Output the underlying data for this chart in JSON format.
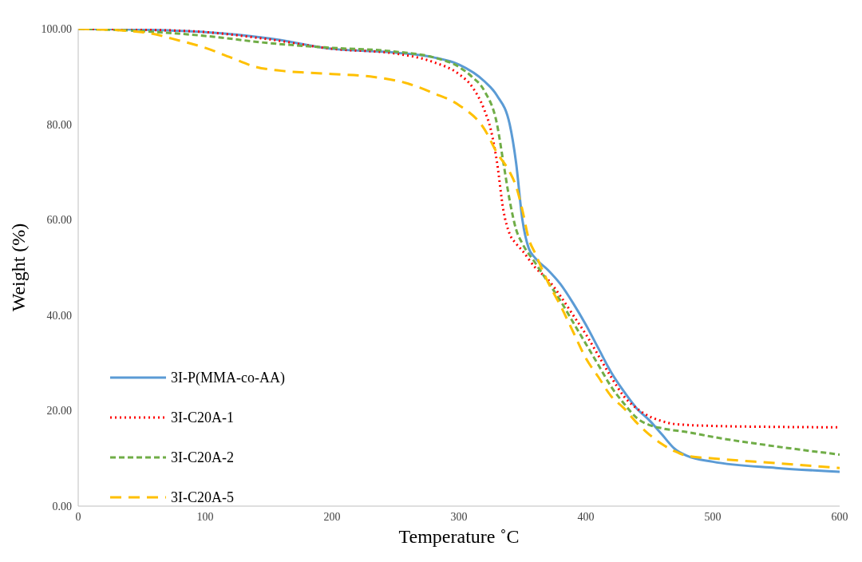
{
  "chart_data": {
    "type": "line",
    "xlabel": "Temperature ˚C",
    "ylabel": "Weight (%)",
    "xlim": [
      0,
      600
    ],
    "xticks": [
      0,
      100,
      200,
      300,
      400,
      500,
      600
    ],
    "ylim": [
      0,
      100
    ],
    "yticks": [
      {
        "value": 0,
        "label": "0.00"
      },
      {
        "value": 20,
        "label": "20.00"
      },
      {
        "value": 40,
        "label": "40.00"
      },
      {
        "value": 60,
        "label": "60.00"
      },
      {
        "value": 80,
        "label": "80.00"
      },
      {
        "value": 100,
        "label": "100.00"
      }
    ],
    "grid": false,
    "legend": "bottom left",
    "marker": "none",
    "series": [
      {
        "name": "3I-P(MMA-co-AA)",
        "color": "#5b9bd5",
        "line_style": "solid",
        "x": [
          0,
          50,
          100,
          150,
          200,
          250,
          280,
          300,
          320,
          330,
          340,
          345,
          350,
          355,
          360,
          370,
          380,
          390,
          400,
          410,
          420,
          430,
          440,
          450,
          460,
          470,
          480,
          500,
          550,
          600
        ],
        "values": [
          100,
          99.8,
          99.3,
          98,
          95.8,
          95,
          94,
          92.5,
          89,
          86,
          80,
          72,
          60,
          54,
          52,
          49.5,
          46.5,
          42.5,
          38,
          33,
          28,
          24,
          20.5,
          18,
          15,
          12,
          10.5,
          9.3,
          8,
          7.2
        ]
      },
      {
        "name": "3I-C20A-1",
        "color": "#ff0000",
        "line_style": "dotted",
        "x": [
          0,
          50,
          100,
          150,
          200,
          250,
          280,
          300,
          310,
          320,
          325,
          330,
          335,
          340,
          345,
          350,
          360,
          370,
          380,
          390,
          400,
          410,
          420,
          430,
          440,
          450,
          460,
          470,
          500,
          550,
          600
        ],
        "values": [
          100,
          99.8,
          99.3,
          97.8,
          95.8,
          94.8,
          93,
          90.5,
          88,
          83,
          79,
          72,
          62,
          57,
          55,
          53.5,
          50,
          47.5,
          44,
          40,
          36,
          31.5,
          27,
          23,
          20.5,
          18.8,
          17.8,
          17.2,
          16.8,
          16.6,
          16.5
        ]
      },
      {
        "name": "3I-C20A-2",
        "color": "#70ad47",
        "line_style": "dashed",
        "x": [
          0,
          50,
          100,
          150,
          200,
          250,
          280,
          300,
          310,
          320,
          330,
          335,
          340,
          345,
          350,
          360,
          370,
          380,
          390,
          400,
          410,
          420,
          430,
          440,
          450,
          460,
          480,
          500,
          550,
          600
        ],
        "values": [
          100,
          99.5,
          98.5,
          97,
          96,
          95.2,
          94,
          92,
          90,
          87,
          80,
          72,
          64,
          58,
          55,
          51,
          47,
          43,
          38.5,
          34,
          29.5,
          25,
          21.5,
          18.5,
          17,
          16.3,
          15.5,
          14.5,
          12.5,
          10.8
        ]
      },
      {
        "name": "3I-C20A-5",
        "color": "#ffc000",
        "line_style": "dashed",
        "x": [
          0,
          50,
          80,
          100,
          120,
          140,
          160,
          180,
          200,
          230,
          260,
          280,
          300,
          320,
          330,
          340,
          345,
          350,
          355,
          360,
          370,
          380,
          390,
          400,
          410,
          420,
          430,
          440,
          450,
          460,
          470,
          480,
          500,
          550,
          600
        ],
        "values": [
          100,
          99.3,
          97.5,
          96,
          94,
          92,
          91.2,
          90.8,
          90.5,
          90,
          88.5,
          86.5,
          84,
          79,
          74,
          70,
          67,
          62,
          56,
          53,
          47,
          42,
          36.5,
          31,
          27,
          23,
          20.5,
          17.5,
          15,
          13,
          11.5,
          10.5,
          10,
          9,
          8
        ]
      }
    ]
  }
}
